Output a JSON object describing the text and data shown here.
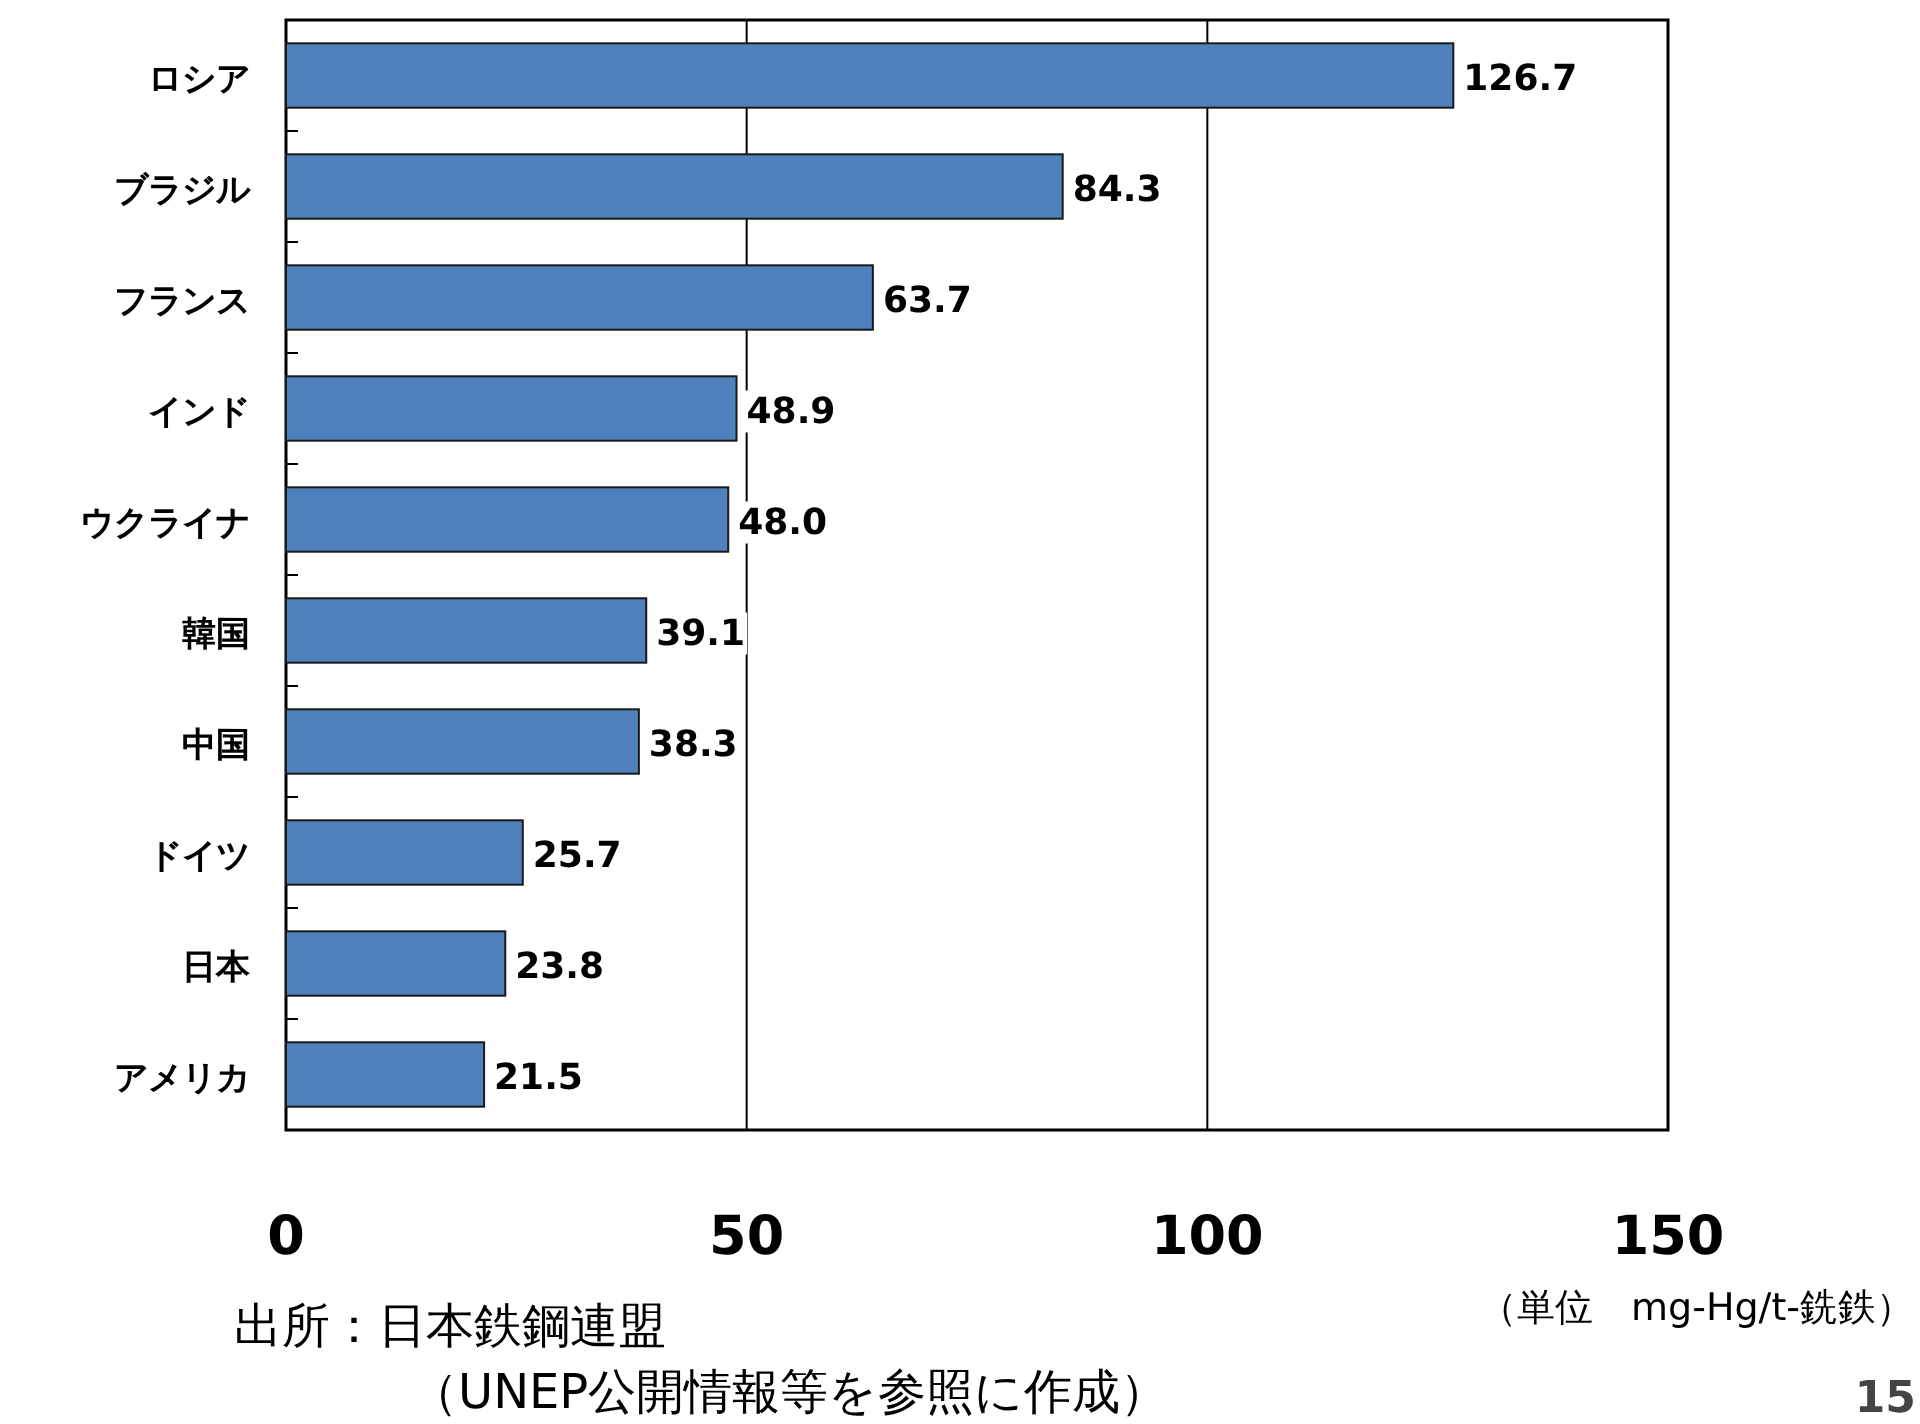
{
  "chart_data": {
    "type": "bar",
    "orientation": "horizontal",
    "categories": [
      "ロシア",
      "ブラジル",
      "フランス",
      "インド",
      "ウクライナ",
      "韓国",
      "中国",
      "ドイツ",
      "日本",
      "アメリカ"
    ],
    "values": [
      126.7,
      84.3,
      63.7,
      48.9,
      48.0,
      39.1,
      38.3,
      25.7,
      23.8,
      21.5
    ],
    "color": "#4f81bd",
    "xlim": [
      0,
      150
    ],
    "xticks": [
      0,
      50,
      100,
      150
    ],
    "grid": "x",
    "value_labels": [
      "126.7",
      "84.3",
      "63.7",
      "48.9",
      "48.0",
      "39.1",
      "38.3",
      "25.7",
      "23.8",
      "21.5"
    ],
    "xlabel": "（単位　mg-Hg/t-銑鉄）",
    "annotations": [
      "出所：日本鉄鋼連盟",
      "（UNEP公開情報等を参照に作成）",
      "15"
    ]
  }
}
